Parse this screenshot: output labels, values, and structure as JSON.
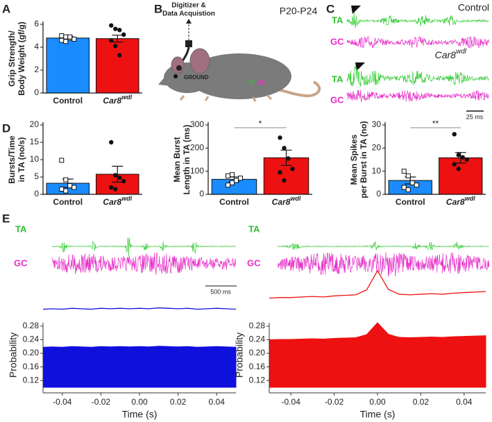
{
  "panel_labels": [
    "A",
    "B",
    "C",
    "D",
    "E"
  ],
  "diagram": {
    "device": [
      "Digitizer &",
      "Data Acquistion"
    ],
    "age": "P20-P24",
    "ground": "GROUND",
    "muscles": [
      "TA",
      "GC"
    ]
  },
  "panel_c": {
    "control": "Control",
    "mutant": {
      "text": "Car8",
      "sup": "wdl"
    },
    "channels": [
      "TA",
      "GC"
    ],
    "scale": "25 ms"
  },
  "panel_e": {
    "channels": [
      "TA",
      "GC"
    ],
    "scale": "500 ms"
  },
  "chart_data": [
    {
      "type": "bar",
      "ylabel": [
        "Grip Strength/",
        "Body Weight (gf/g)"
      ],
      "categories": [
        {
          "text": "Control"
        },
        {
          "text": "Car8",
          "sup": "wdl"
        }
      ],
      "values": [
        4.8,
        4.75
      ],
      "errors": [
        0.15,
        0.3
      ],
      "colors": [
        "#1a8cff",
        "#ee1111"
      ],
      "markers": [
        "square",
        "circle"
      ],
      "points": [
        [
          5.0,
          4.9,
          4.8,
          4.7,
          4.6,
          4.5,
          4.9
        ],
        [
          5.9,
          5.6,
          5.5,
          5.1,
          4.6,
          4.1,
          3.3
        ]
      ],
      "ylim": [
        0,
        6
      ],
      "yticks": [
        0,
        2,
        4,
        6
      ]
    },
    {
      "type": "bar",
      "ylabel": [
        "Bursts/Time",
        "in TA (no/s)"
      ],
      "categories": [
        {
          "text": "Control"
        },
        {
          "text": "Car8",
          "sup": "wdl"
        }
      ],
      "values": [
        3.2,
        5.8
      ],
      "errors": [
        1.2,
        2.3
      ],
      "colors": [
        "#1a8cff",
        "#ee1111"
      ],
      "markers": [
        "square",
        "circle"
      ],
      "points": [
        [
          9.8,
          4.2,
          2.5,
          2,
          1.5,
          1
        ],
        [
          15,
          5.5,
          4.8,
          3.8,
          2,
          1.5
        ]
      ],
      "ylim": [
        0,
        20
      ],
      "yticks": [
        0,
        5,
        10,
        15,
        20
      ]
    },
    {
      "type": "bar",
      "ylabel": [
        "Mean Burst",
        "Length in TA (ms)"
      ],
      "categories": [
        {
          "text": "Control"
        },
        {
          "text": "Car8",
          "sup": "wdl"
        }
      ],
      "values": [
        65,
        158
      ],
      "errors": [
        10,
        33
      ],
      "colors": [
        "#1a8cff",
        "#ee1111"
      ],
      "markers": [
        "square",
        "circle"
      ],
      "points": [
        [
          40,
          50,
          60,
          70,
          80,
          85
        ],
        [
          245,
          200,
          155,
          110,
          95,
          60
        ]
      ],
      "significance": "*",
      "ylim": [
        0,
        300
      ],
      "yticks": [
        0,
        100,
        200,
        300
      ]
    },
    {
      "type": "bar",
      "ylabel": [
        "Mean Spikes",
        "per Burst in TA (no)"
      ],
      "categories": [
        {
          "text": "Control"
        },
        {
          "text": "Car8",
          "sup": "wdl"
        }
      ],
      "values": [
        6,
        15.8
      ],
      "errors": [
        1.5,
        2.3
      ],
      "colors": [
        "#1a8cff",
        "#ee1111"
      ],
      "markers": [
        "square",
        "circle"
      ],
      "points": [
        [
          10,
          8,
          5,
          4,
          3,
          2
        ],
        [
          26,
          17,
          16,
          15,
          13,
          11
        ]
      ],
      "significance": "**",
      "ylim": [
        0,
        30
      ],
      "yticks": [
        0,
        10,
        20,
        30
      ]
    },
    {
      "type": "area",
      "xlabel": "Time (s)",
      "ylabel": "Probability",
      "x": [
        -0.05,
        -0.045,
        -0.04,
        -0.035,
        -0.03,
        -0.025,
        -0.02,
        -0.015,
        -0.01,
        -0.005,
        0,
        0.005,
        0.01,
        0.015,
        0.02,
        0.025,
        0.03,
        0.035,
        0.04,
        0.045,
        0.05
      ],
      "series": [
        {
          "color": "#1010dd",
          "values": [
            0.218,
            0.219,
            0.218,
            0.22,
            0.219,
            0.218,
            0.22,
            0.219,
            0.22,
            0.219,
            0.22,
            0.219,
            0.221,
            0.22,
            0.219,
            0.22,
            0.218,
            0.219,
            0.22,
            0.219,
            0.218
          ]
        }
      ],
      "xlim": [
        -0.05,
        0.05
      ],
      "xticks": [
        -0.04,
        -0.02,
        {
          "value": 0,
          "label": "0.00"
        },
        0.02,
        0.04
      ],
      "ylim": [
        0.1,
        0.29
      ],
      "yticks": [
        0.12,
        0.16,
        {
          "value": 0.2,
          "label": "0.20"
        },
        0.24,
        0.28
      ]
    },
    {
      "type": "area",
      "xlabel": "Time (s)",
      "ylabel": "Probability",
      "x": [
        -0.05,
        -0.045,
        -0.04,
        -0.035,
        -0.03,
        -0.025,
        -0.02,
        -0.015,
        -0.01,
        -0.005,
        0,
        0.005,
        0.01,
        0.015,
        0.02,
        0.025,
        0.03,
        0.035,
        0.04,
        0.045,
        0.05
      ],
      "series": [
        {
          "color": "#ee1111",
          "values": [
            0.24,
            0.241,
            0.241,
            0.242,
            0.243,
            0.242,
            0.244,
            0.245,
            0.246,
            0.255,
            0.29,
            0.256,
            0.247,
            0.246,
            0.247,
            0.248,
            0.247,
            0.249,
            0.25,
            0.251,
            0.252
          ]
        }
      ],
      "xlim": [
        -0.05,
        0.05
      ],
      "xticks": [
        -0.04,
        -0.02,
        {
          "value": 0,
          "label": "0.00"
        },
        0.02,
        0.04
      ],
      "ylim": [
        0.1,
        0.29
      ],
      "yticks": [
        0.12,
        0.16,
        {
          "value": 0.2,
          "label": "0.20"
        },
        0.24,
        0.28
      ]
    }
  ]
}
